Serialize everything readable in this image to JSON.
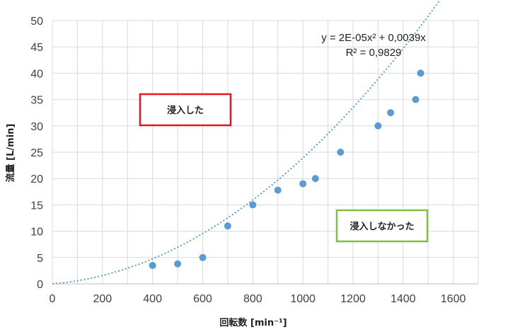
{
  "chart_data": {
    "type": "scatter",
    "xlabel": "回転数 [min⁻¹]",
    "ylabel": "流量 [L/min]",
    "xlim": [
      0,
      1700
    ],
    "ylim": [
      0,
      50
    ],
    "xticks": [
      0,
      200,
      400,
      600,
      800,
      1000,
      1200,
      1400,
      1600
    ],
    "yticks": [
      0,
      5,
      10,
      15,
      20,
      25,
      30,
      35,
      40,
      45,
      50
    ],
    "grid": true,
    "points": [
      {
        "x": 400,
        "y": 3.5
      },
      {
        "x": 500,
        "y": 3.8
      },
      {
        "x": 600,
        "y": 5.0
      },
      {
        "x": 700,
        "y": 11.0
      },
      {
        "x": 800,
        "y": 15.0
      },
      {
        "x": 900,
        "y": 17.8
      },
      {
        "x": 1000,
        "y": 19.0
      },
      {
        "x": 1050,
        "y": 20.0
      },
      {
        "x": 1150,
        "y": 25.0
      },
      {
        "x": 1300,
        "y": 30.0
      },
      {
        "x": 1350,
        "y": 32.5
      },
      {
        "x": 1450,
        "y": 35.0
      },
      {
        "x": 1470,
        "y": 40.0
      }
    ],
    "trendline": {
      "type": "polynomial",
      "a2": 2e-05,
      "a1": 0.0039,
      "equation": "y = 2E-05x² + 0,0039x",
      "r2": "R² = 0,9829"
    },
    "annotations": [
      {
        "text": "浸入した",
        "color": "#e8171d"
      },
      {
        "text": "浸入しなかった",
        "color": "#7cc242"
      }
    ],
    "colors": {
      "marker": "#5b9bd5",
      "trend": "#5b9bd5",
      "grid": "#d9d9d9"
    }
  }
}
